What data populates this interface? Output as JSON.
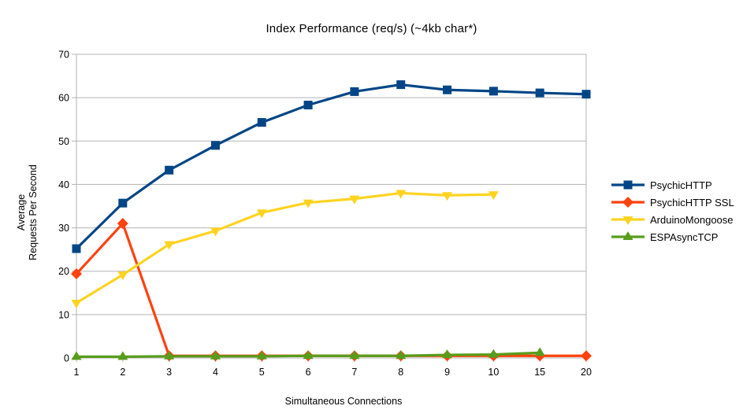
{
  "chart_data": {
    "type": "line",
    "title": "Index Performance (req/s) (~4kb char*)",
    "xlabel": "Simultaneous Connections",
    "ylabel": "Average\nRequests Per Second",
    "categories": [
      "1",
      "2",
      "3",
      "4",
      "5",
      "6",
      "7",
      "8",
      "9",
      "10",
      "15",
      "20"
    ],
    "ylim": [
      0,
      70
    ],
    "yticks": [
      0,
      10,
      20,
      30,
      40,
      50,
      60,
      70
    ],
    "grid": true,
    "legend_position": "right",
    "colors": {
      "grid": "#b3b3b3",
      "axis": "#b3b3b3",
      "text": "#000000",
      "background": "#ffffff"
    },
    "series": [
      {
        "name": "PsychicHTTP",
        "color": "#004586",
        "marker": "square",
        "values": [
          25.2,
          35.7,
          43.3,
          49.0,
          54.3,
          58.3,
          61.4,
          63.0,
          61.8,
          61.5,
          61.1,
          60.8
        ]
      },
      {
        "name": "PsychicHTTP SSL",
        "color": "#ff420e",
        "marker": "diamond",
        "values": [
          19.4,
          31.0,
          0.5,
          0.5,
          0.5,
          0.5,
          0.5,
          0.5,
          0.5,
          0.5,
          0.5,
          0.5
        ]
      },
      {
        "name": "ArduinoMongoose",
        "color": "#ffd320",
        "marker": "triangle-down",
        "values": [
          12.7,
          19.2,
          26.2,
          29.3,
          33.5,
          35.8,
          36.7,
          38.0,
          37.5,
          37.7,
          null,
          null
        ]
      },
      {
        "name": "ESPAsyncTCP",
        "color": "#579d1c",
        "marker": "triangle-up",
        "values": [
          0.3,
          0.3,
          0.4,
          0.4,
          0.4,
          0.5,
          0.5,
          0.5,
          0.7,
          0.8,
          1.2,
          null
        ]
      }
    ]
  }
}
